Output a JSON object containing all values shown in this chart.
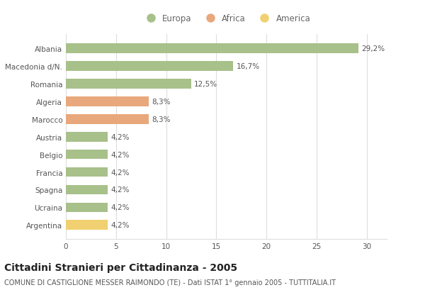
{
  "categories": [
    "Albania",
    "Macedonia d/N.",
    "Romania",
    "Algeria",
    "Marocco",
    "Austria",
    "Belgio",
    "Francia",
    "Spagna",
    "Ucraina",
    "Argentina"
  ],
  "values": [
    29.2,
    16.7,
    12.5,
    8.3,
    8.3,
    4.2,
    4.2,
    4.2,
    4.2,
    4.2,
    4.2
  ],
  "labels": [
    "29,2%",
    "16,7%",
    "12,5%",
    "8,3%",
    "8,3%",
    "4,2%",
    "4,2%",
    "4,2%",
    "4,2%",
    "4,2%",
    "4,2%"
  ],
  "colors": [
    "#a8c08a",
    "#a8c08a",
    "#a8c08a",
    "#e8a87c",
    "#e8a87c",
    "#a8c08a",
    "#a8c08a",
    "#a8c08a",
    "#a8c08a",
    "#a8c08a",
    "#f0d070"
  ],
  "legend_labels": [
    "Europa",
    "Africa",
    "America"
  ],
  "legend_colors": [
    "#a8c08a",
    "#e8a87c",
    "#f0d070"
  ],
  "xlim": [
    0,
    32
  ],
  "xticks": [
    0,
    5,
    10,
    15,
    20,
    25,
    30
  ],
  "title": "Cittadini Stranieri per Cittadinanza - 2005",
  "subtitle": "COMUNE DI CASTIGLIONE MESSER RAIMONDO (TE) - Dati ISTAT 1° gennaio 2005 - TUTTITALIA.IT",
  "bg_color": "#ffffff",
  "grid_color": "#dddddd",
  "bar_height": 0.55,
  "title_fontsize": 10,
  "subtitle_fontsize": 7,
  "label_fontsize": 7.5,
  "tick_fontsize": 7.5,
  "legend_fontsize": 8.5
}
